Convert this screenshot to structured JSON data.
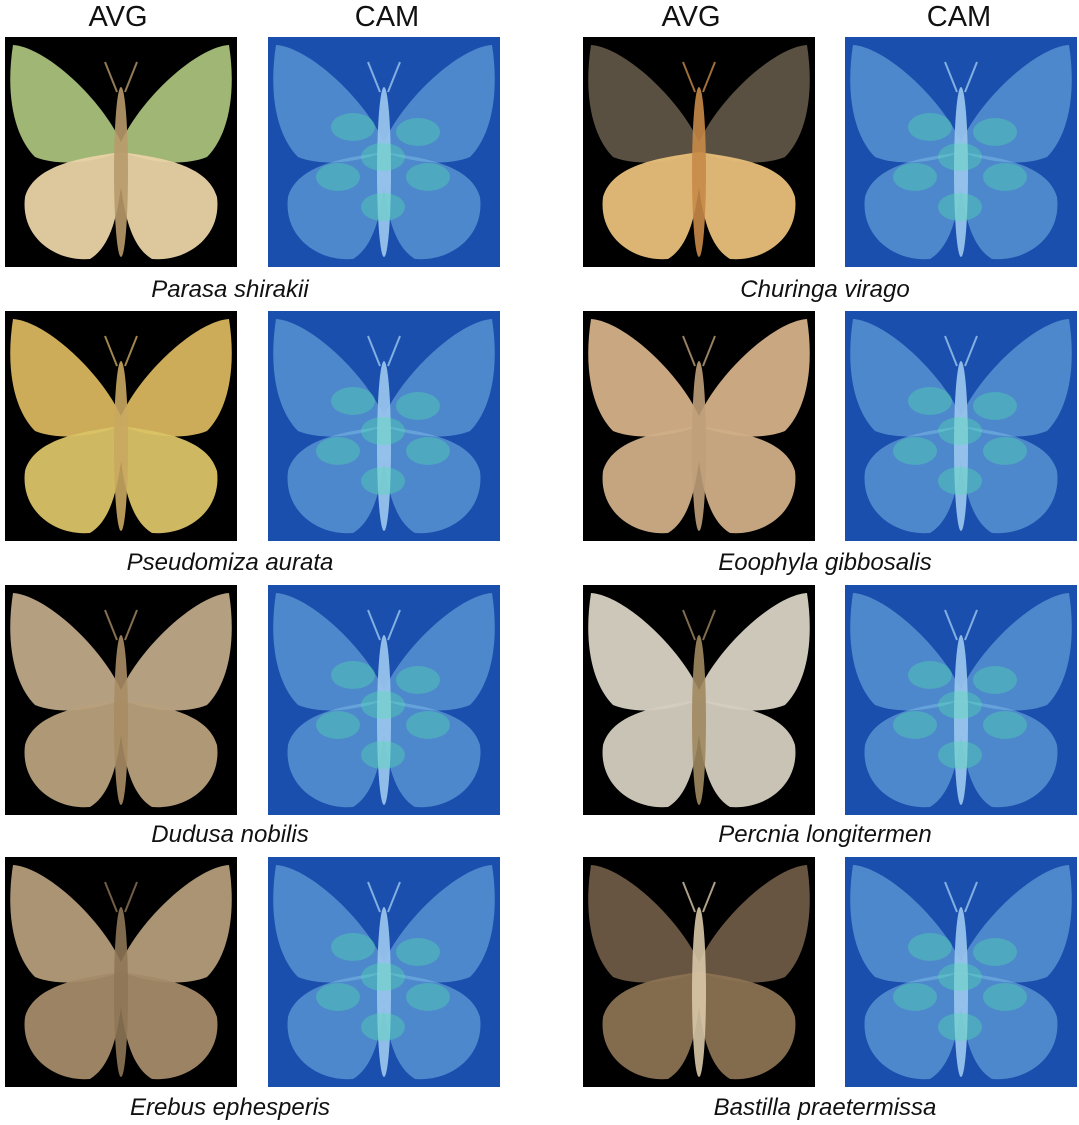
{
  "headers": {
    "avg": "AVG",
    "cam": "CAM"
  },
  "species": [
    {
      "name": "Parasa shirakii",
      "avg": {
        "fore": "#a9c07a",
        "hind": "#e9d3a6",
        "body": "#b89a6a"
      }
    },
    {
      "name": "Pseudomiza aurata",
      "avg": {
        "fore": "#d8b55e",
        "hind": "#d9c266",
        "body": "#c9a860"
      }
    },
    {
      "name": "Dudusa nobilis",
      "avg": {
        "fore": "#bea888",
        "hind": "#b8a07c",
        "body": "#a88c64"
      }
    },
    {
      "name": "Erebus ephesperis",
      "avg": {
        "fore": "#b39c7a",
        "hind": "#a48a68",
        "body": "#8e7656"
      }
    },
    {
      "name": "Churinga virago",
      "avg": {
        "fore": "#5e5444",
        "hind": "#e8bf7a",
        "body": "#c88a48"
      }
    },
    {
      "name": "Eoophyla gibbosalis",
      "avg": {
        "fore": "#d4b088",
        "hind": "#cfae86",
        "body": "#bfa07a"
      }
    },
    {
      "name": "Percnia longitermen",
      "avg": {
        "fore": "#d8d2c4",
        "hind": "#d4cebf",
        "body": "#a08860"
      }
    },
    {
      "name": "Bastilla praetermissa",
      "avg": {
        "fore": "#6e5a44",
        "hind": "#8a7252",
        "body": "#d8c8a8"
      }
    }
  ],
  "colors": {
    "background": "#000000",
    "cam_bg": "#1a4fae",
    "cam_wing": "#7ab8e6",
    "cam_hot": "#4ee6a8"
  }
}
